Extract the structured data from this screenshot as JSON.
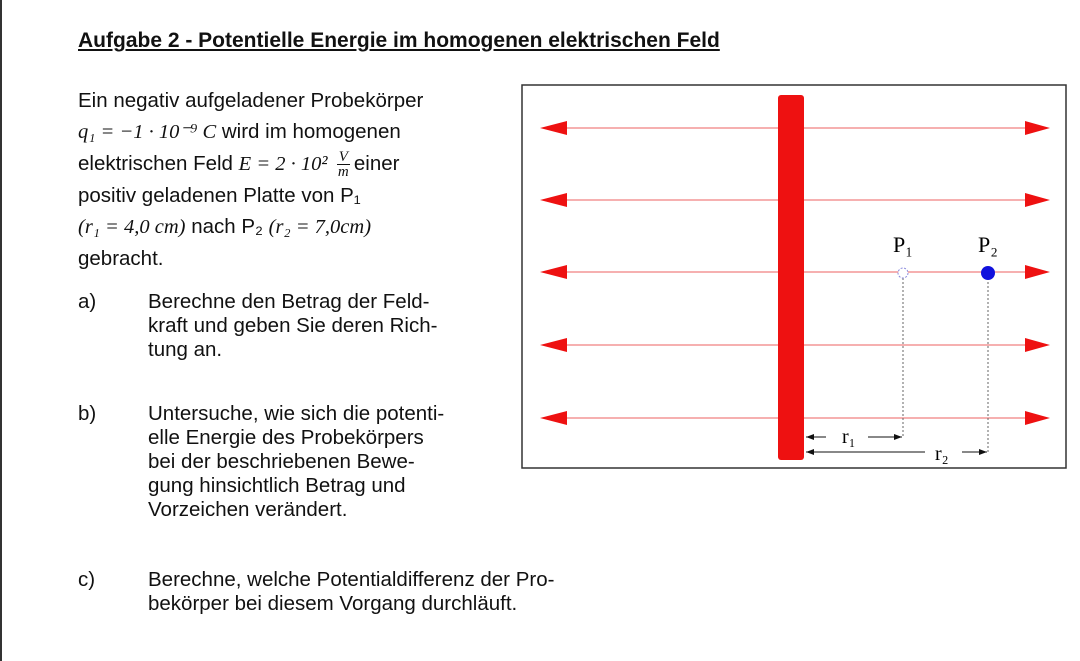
{
  "title": "Aufgabe 2 - Potentielle Energie im homogenen elektrischen Feld",
  "intro": {
    "line1": "Ein negativ aufgeladener Probekörper",
    "q_math": "q₁ = −1 · 10⁻⁹ C",
    "line2_rest": " wird im homogenen",
    "line3_start": "elektrischen Feld ",
    "e_math": "E = 2 · 10² ",
    "unit_num": "V",
    "unit_den": "m",
    "line3_end": "einer",
    "line4": "positiv geladenen Platte von P₁",
    "r1_math": "(r₁ = 4,0 cm)",
    "line5_mid": " nach P₂ ",
    "r2_math": "(r₂ = 7,0cm)",
    "line6": "gebracht."
  },
  "tasks": [
    {
      "label": "a)",
      "lines": [
        "Berechne den Betrag der Feld-",
        "kraft und geben Sie deren Rich-",
        "tung an."
      ]
    },
    {
      "label": "b)",
      "lines": [
        "Untersuche, wie sich die potenti-",
        "elle Energie des Probekörpers",
        "bei der beschriebenen Bewe-",
        "gung hinsichtlich Betrag und",
        "Vorzeichen verändert."
      ]
    },
    {
      "label": "c)",
      "lines": [
        "Berechne, welche Potentialdifferenz der Pro-",
        "bekörper bei diesem Vorgang durchläuft."
      ]
    }
  ],
  "diagram": {
    "p1_label": "P₁",
    "p2_label": "P₂",
    "r1_label": "r₁",
    "r2_label": "r₂",
    "plate_color": "#ee1111",
    "field_color": "#ee1111",
    "p2_color": "#1111dd"
  }
}
